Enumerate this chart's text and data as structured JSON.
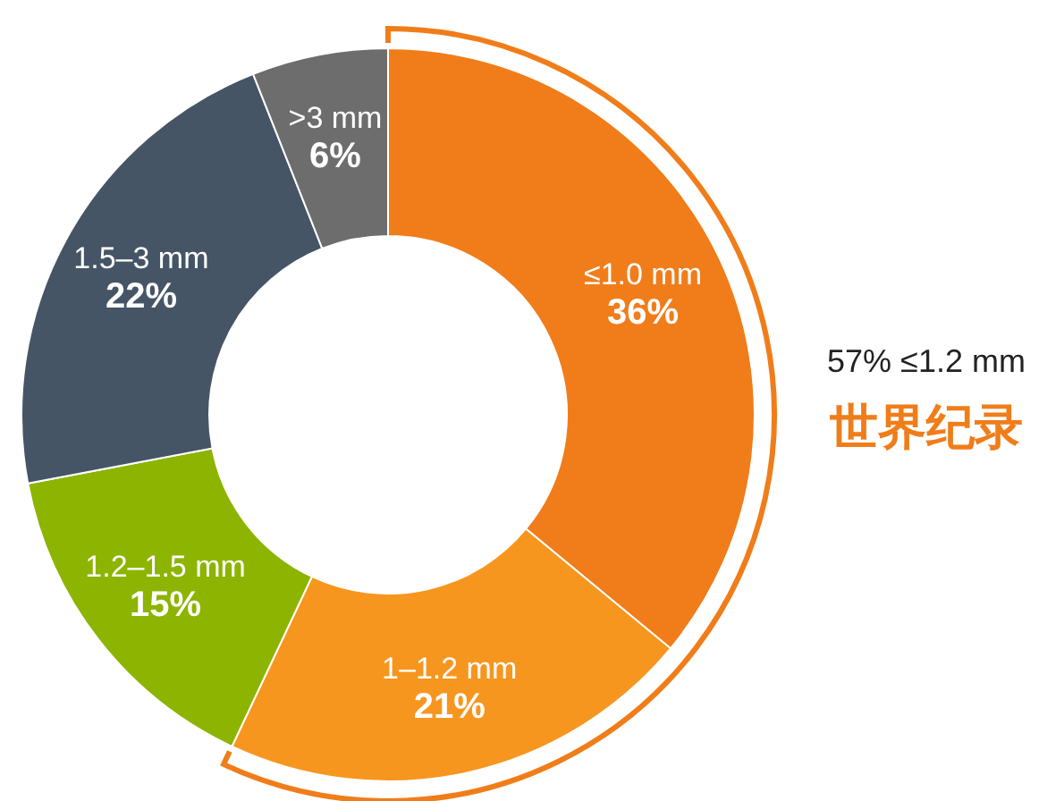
{
  "chart_data": {
    "type": "donut",
    "categories": [
      "≤1.0 mm",
      "1–1.2 mm",
      "1.2–1.5 mm",
      "1.5–3 mm",
      ">3 mm"
    ],
    "values": [
      36,
      21,
      15,
      22,
      6
    ],
    "value_labels": [
      "36%",
      "21%",
      "15%",
      "22%",
      "6%"
    ],
    "colors": [
      "#f07d1a",
      "#f7961f",
      "#8cb400",
      "#455566",
      "#6d6d6d"
    ],
    "annotations": [
      "57% ≤1.2 mm",
      "世界纪录"
    ]
  }
}
